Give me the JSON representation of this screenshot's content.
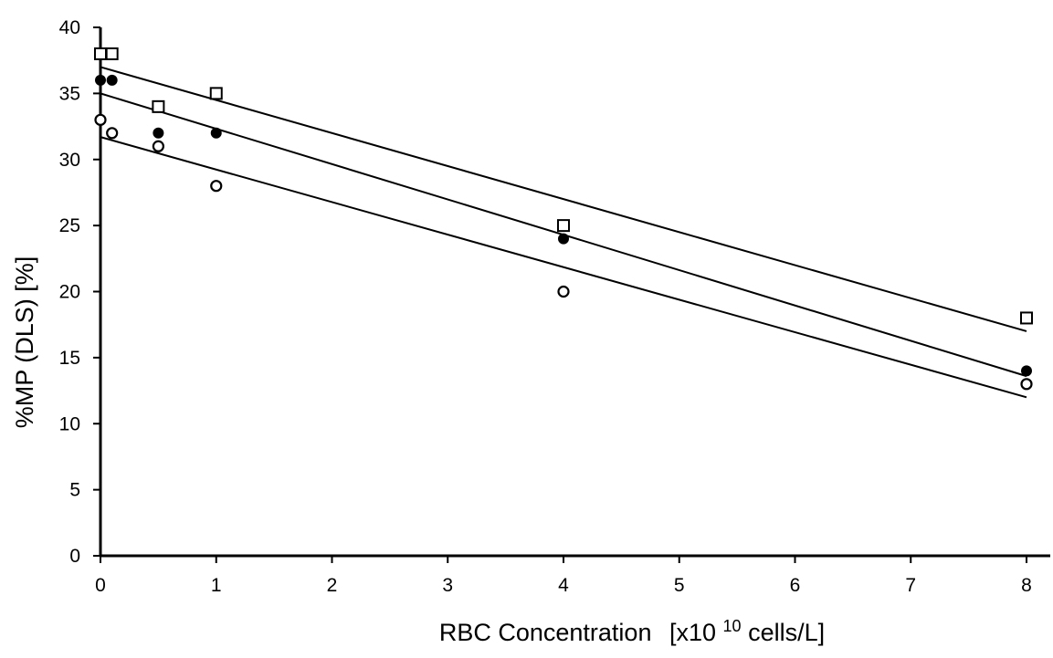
{
  "chart_data": {
    "type": "scatter",
    "title": "",
    "xlabel": "RBC Concentration",
    "xlabel_units": {
      "open": "[x10",
      "sup": "10",
      "close": " cells/L]"
    },
    "ylabel": "%MP (DLS) [%]",
    "xlim": [
      0,
      8
    ],
    "ylim": [
      0,
      40
    ],
    "xticks": [
      0,
      1,
      2,
      3,
      4,
      5,
      6,
      7,
      8
    ],
    "yticks": [
      0,
      5,
      10,
      15,
      20,
      25,
      30,
      35,
      40
    ],
    "grid": false,
    "legend": "none",
    "series": [
      {
        "marker": "open-square",
        "points": [
          [
            0,
            38
          ],
          [
            0.1,
            38
          ],
          [
            0.5,
            34
          ],
          [
            1,
            35
          ],
          [
            4,
            25
          ],
          [
            8,
            18
          ]
        ],
        "trendline": [
          [
            0,
            37
          ],
          [
            8,
            17
          ]
        ]
      },
      {
        "marker": "filled-circle",
        "points": [
          [
            0,
            36
          ],
          [
            0.1,
            36
          ],
          [
            0.5,
            32
          ],
          [
            1,
            32
          ],
          [
            4,
            24
          ],
          [
            8,
            14
          ]
        ],
        "trendline": [
          [
            0,
            35
          ],
          [
            8,
            13.6
          ]
        ]
      },
      {
        "marker": "open-circle",
        "points": [
          [
            0,
            33
          ],
          [
            0.1,
            32
          ],
          [
            0.5,
            31
          ],
          [
            1,
            28
          ],
          [
            4,
            20
          ],
          [
            8,
            13
          ]
        ],
        "trendline": [
          [
            0,
            31.7
          ],
          [
            8,
            12
          ]
        ]
      }
    ]
  }
}
